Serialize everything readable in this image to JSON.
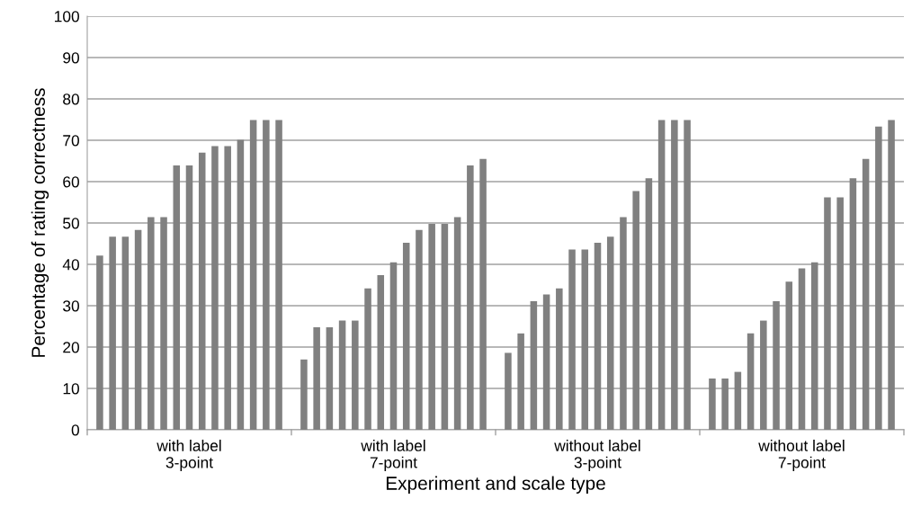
{
  "chart_data": {
    "type": "bar",
    "xlabel": "Experiment and scale type",
    "ylabel": "Percentage of rating correctness",
    "categories": [
      "with label\n3-point",
      "with label\n7-point",
      "without label\n3-point",
      "without label\n7-point"
    ],
    "series": [
      {
        "color": "#808080",
        "values": [
          42.1,
          17.0,
          18.6,
          12.4
        ]
      },
      {
        "color": "#808080",
        "values": [
          46.7,
          24.8,
          23.3,
          12.4
        ]
      },
      {
        "color": "#808080",
        "values": [
          46.7,
          24.8,
          31.1,
          14.0
        ]
      },
      {
        "color": "#808080",
        "values": [
          48.3,
          26.4,
          32.7,
          23.3
        ]
      },
      {
        "color": "#808080",
        "values": [
          51.4,
          26.4,
          34.2,
          26.4
        ]
      },
      {
        "color": "#808080",
        "values": [
          51.4,
          34.2,
          43.6,
          31.1
        ]
      },
      {
        "color": "#808080",
        "values": [
          63.9,
          37.4,
          43.6,
          35.8
        ]
      },
      {
        "color": "#808080",
        "values": [
          63.9,
          40.5,
          45.2,
          39.0
        ]
      },
      {
        "color": "#808080",
        "values": [
          67.0,
          45.2,
          46.7,
          40.5
        ]
      },
      {
        "color": "#808080",
        "values": [
          68.6,
          48.3,
          51.4,
          56.2
        ]
      },
      {
        "color": "#808080",
        "values": [
          68.6,
          49.8,
          57.7,
          56.2
        ]
      },
      {
        "color": "#808080",
        "values": [
          70.1,
          49.8,
          60.8,
          60.8
        ]
      },
      {
        "color": "#808080",
        "values": [
          74.9,
          51.4,
          74.9,
          65.5
        ]
      },
      {
        "color": "#808080",
        "values": [
          74.9,
          63.9,
          74.9,
          73.3
        ]
      },
      {
        "color": "#808080",
        "values": [
          74.9,
          65.5,
          74.9,
          74.9
        ]
      }
    ],
    "ylim": [
      0,
      100
    ],
    "yticks": [
      0,
      10,
      20,
      30,
      40,
      50,
      60,
      70,
      80,
      90,
      100
    ],
    "grid": "y"
  }
}
